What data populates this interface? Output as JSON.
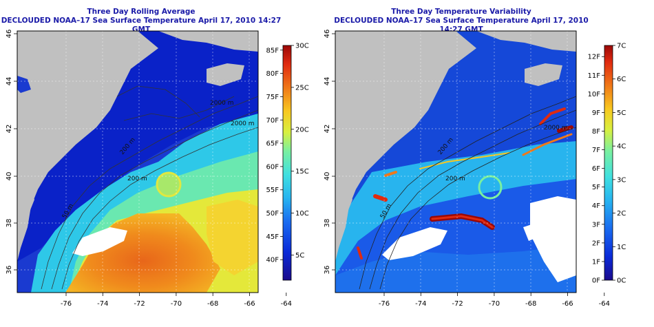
{
  "panels": [
    {
      "title": "Three Day Rolling Average",
      "subtitle": "DECLOUDED NOAA–17 Sea Surface Temperature April 17, 2010 14:27 GMT",
      "colorbar": {
        "fahrenheit": [
          "40F",
          "45F",
          "50F",
          "55F",
          "60F",
          "65F",
          "70F",
          "75F",
          "80F",
          "85F"
        ],
        "celsius": [
          "5C",
          "10C",
          "15C",
          "20C",
          "25C",
          "30C"
        ]
      },
      "contour_labels": [
        "50 m",
        "200 m",
        "200 m",
        "2000 m",
        "2000 m"
      ]
    },
    {
      "title": "Three Day Temperature Variability",
      "subtitle": "DECLOUDED NOAA–17 Sea Surface Temperature April 17, 2010 14:27 GMT",
      "colorbar": {
        "fahrenheit": [
          "0F",
          "1F",
          "2F",
          "3F",
          "4F",
          "5F",
          "6F",
          "7F",
          "8F",
          "9F",
          "10F",
          "11F",
          "12F"
        ],
        "celsius": [
          "0C",
          "1C",
          "2C",
          "3C",
          "4C",
          "5C",
          "6C",
          "7C"
        ]
      },
      "contour_labels": [
        "50 m",
        "200 m",
        "200 m",
        "2000 m"
      ]
    }
  ],
  "axes": {
    "lon_ticks": [
      "-76",
      "-74",
      "-72",
      "-70",
      "-68",
      "-66",
      "-64"
    ],
    "lat_ticks": [
      "36",
      "38",
      "40",
      "42",
      "44",
      "46"
    ]
  },
  "colors": {
    "land": "#c0c0c0",
    "title": "#1a1aa8",
    "sst_scale": [
      "#1a0a8c",
      "#0a2ad8",
      "#1a6cf0",
      "#27b4f0",
      "#40e0e0",
      "#7af0a0",
      "#d8f040",
      "#f8c820",
      "#f07818",
      "#e02a10",
      "#9a0808"
    ],
    "var_scale": [
      "#1a0a8c",
      "#0a2ad8",
      "#1a6cf0",
      "#27b4f0",
      "#40e0e0",
      "#7af0a0",
      "#d8f040",
      "#f8c820",
      "#f07818",
      "#e02a10",
      "#9a0808"
    ]
  }
}
